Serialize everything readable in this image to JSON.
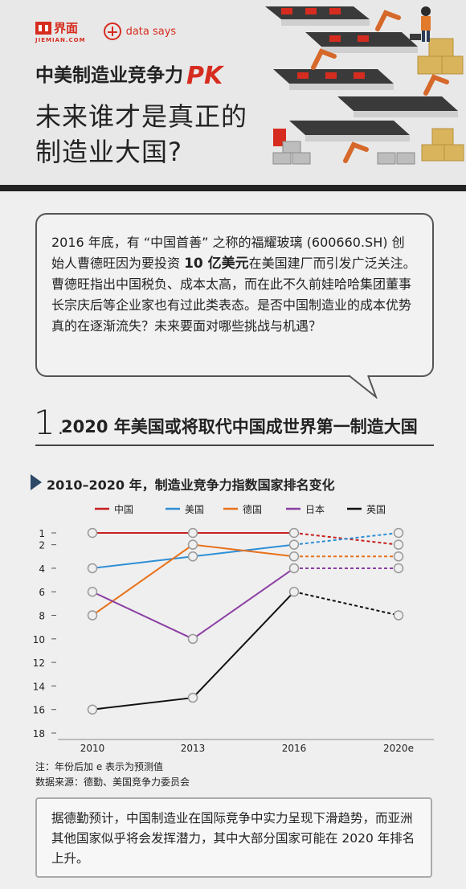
{
  "header": {
    "logo_jiemian_cn": "界面",
    "logo_jiemian_en": "JIEMIAN.COM",
    "logo_datasays": "data says",
    "title_line1": "中美制造业竞争力",
    "title_pk": "PK",
    "title_line2": "未来谁才是真正的",
    "title_line3": "制造业大国?"
  },
  "intro": {
    "part1": "2016 年底，有 “中国首善” 之称的福耀玻璃 (600660.SH) 创始人曹德旺因为要投资 ",
    "highlight": "10 亿美元",
    "part2": "在美国建厂而引发广泛关注。曹德旺指出中国税负、成本太高，而在此不久前娃哈哈集团董事长宗庆后等企业家也有过此类表态。是否中国制造业的成本优势真的在逐渐流失？未来要面对哪些挑战与机遇？"
  },
  "section": {
    "number": "1.",
    "title": "2020 年美国或将取代中国成世界第一制造大国"
  },
  "chart_title": "2010–2020 年，制造业竞争力指数国家排名变化",
  "chart_data": {
    "type": "line",
    "x": [
      "2010",
      "2013",
      "2016",
      "2020e"
    ],
    "ylim": [
      18,
      1
    ],
    "yticks": [
      1,
      2,
      4,
      6,
      8,
      10,
      12,
      14,
      16,
      18
    ],
    "legend_position": "top",
    "series": [
      {
        "name": "中国",
        "color": "#c8201f",
        "values": [
          1,
          1,
          1,
          2
        ]
      },
      {
        "name": "美国",
        "color": "#2e8fd6",
        "values": [
          4,
          3,
          2,
          1
        ]
      },
      {
        "name": "德国",
        "color": "#e8711a",
        "values": [
          8,
          2,
          3,
          3
        ]
      },
      {
        "name": "日本",
        "color": "#8b3fa3",
        "values": [
          6,
          10,
          4,
          4
        ]
      },
      {
        "name": "英国",
        "color": "#111111",
        "values": [
          16,
          15,
          6,
          8
        ]
      }
    ],
    "projection_note": "dashed segment from 2016 to 2020e"
  },
  "notes": {
    "note": "注：年份后加 e 表示为预测值",
    "source": "数据来源：德勤、美国竞争力委员会"
  },
  "summary": "据德勤预计，中国制造业在国际竞争中实力呈现下滑趋势，而亚洲其他国家似乎将会发挥潜力，其中大部分国家可能在 2020 年排名上升。"
}
